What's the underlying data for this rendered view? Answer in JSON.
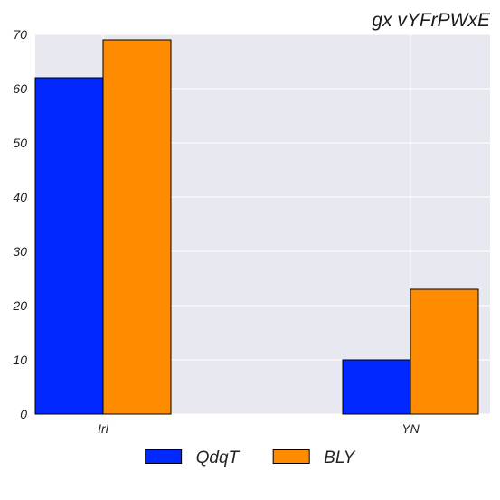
{
  "chart_data": {
    "type": "bar",
    "title": "gx vYFrPWxE",
    "xlabel": "",
    "ylabel": "",
    "categories": [
      "Irl",
      "YN"
    ],
    "series": [
      {
        "name": "QdqT",
        "values": [
          62,
          10
        ],
        "color": "#0028ff"
      },
      {
        "name": "BLY",
        "values": [
          69,
          23
        ],
        "color": "#ff8c00"
      }
    ],
    "ylim": [
      0,
      70
    ],
    "yticks": [
      0,
      10,
      20,
      30,
      40,
      50,
      60,
      70
    ],
    "grid": true,
    "legend_position": "bottom-center",
    "plot_background": "#e8e8f0",
    "grid_color": "#ffffff"
  }
}
